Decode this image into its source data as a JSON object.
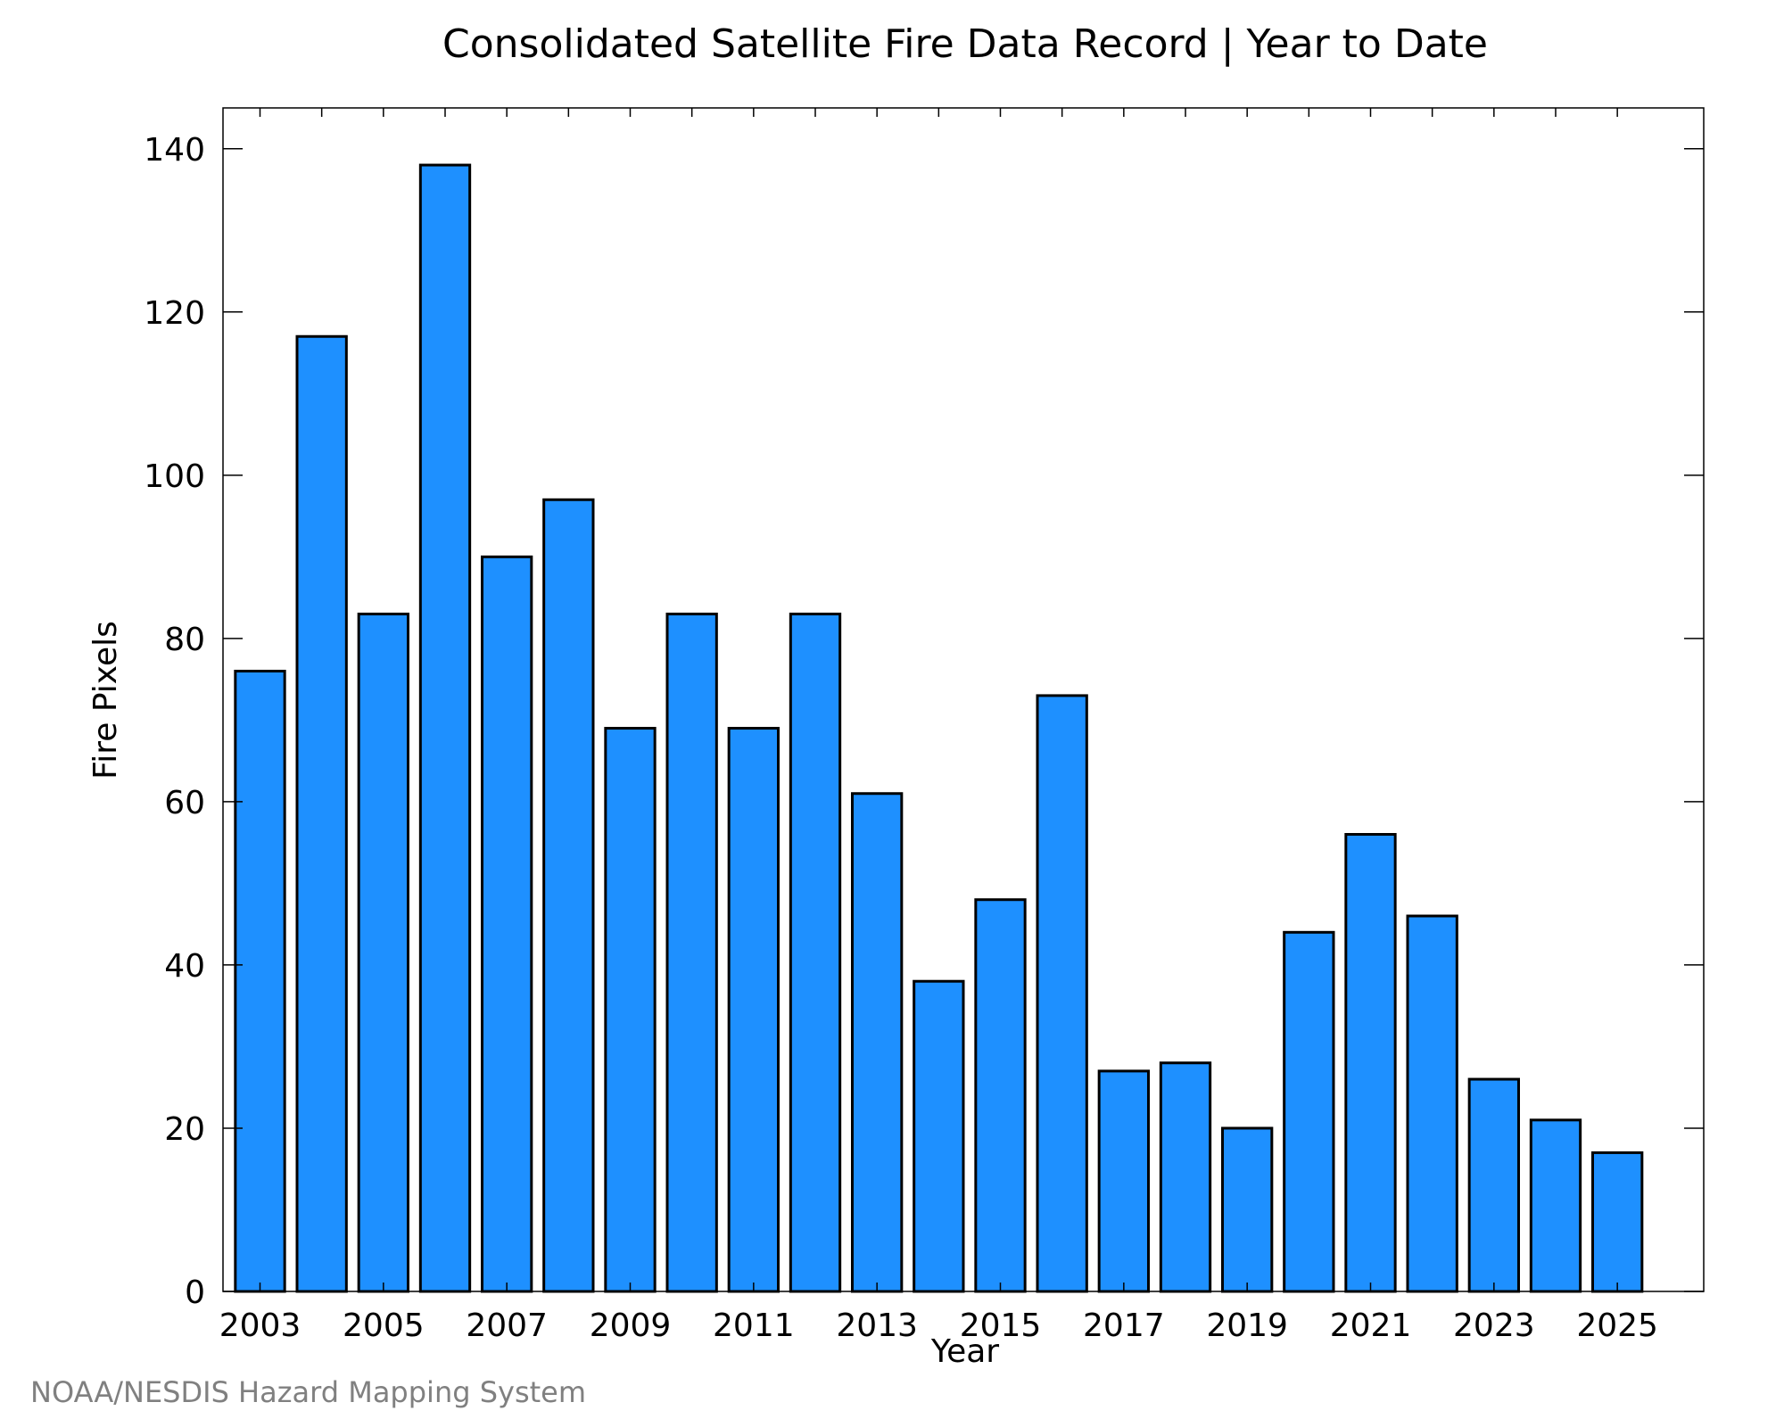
{
  "chart_data": {
    "type": "bar",
    "title": "Consolidated Satellite Fire Data Record | Year to Date",
    "xlabel": "Year",
    "ylabel": "Fire Pixels",
    "categories": [
      "2003",
      "2004",
      "2005",
      "2006",
      "2007",
      "2008",
      "2009",
      "2010",
      "2011",
      "2012",
      "2013",
      "2014",
      "2015",
      "2016",
      "2017",
      "2018",
      "2019",
      "2020",
      "2021",
      "2022",
      "2023",
      "2024",
      "2025"
    ],
    "values": [
      76,
      117,
      83,
      138,
      90,
      97,
      69,
      83,
      69,
      83,
      61,
      38,
      48,
      73,
      27,
      28,
      20,
      44,
      56,
      46,
      26,
      21,
      17
    ],
    "x_tick_labels": [
      "2003",
      "2005",
      "2007",
      "2009",
      "2011",
      "2013",
      "2015",
      "2017",
      "2019",
      "2021",
      "2023",
      "2025"
    ],
    "y_tick_labels": [
      "0",
      "20",
      "40",
      "60",
      "80",
      "100",
      "120",
      "140"
    ],
    "y_ticks": [
      0,
      20,
      40,
      60,
      80,
      100,
      120,
      140
    ],
    "ylim": [
      0,
      145
    ],
    "xlim": [
      2002.4,
      2026.4
    ],
    "bar_color": "#1E90FF",
    "grid": false,
    "legend": "none"
  },
  "credit": "NOAA/NESDIS Hazard Mapping System"
}
